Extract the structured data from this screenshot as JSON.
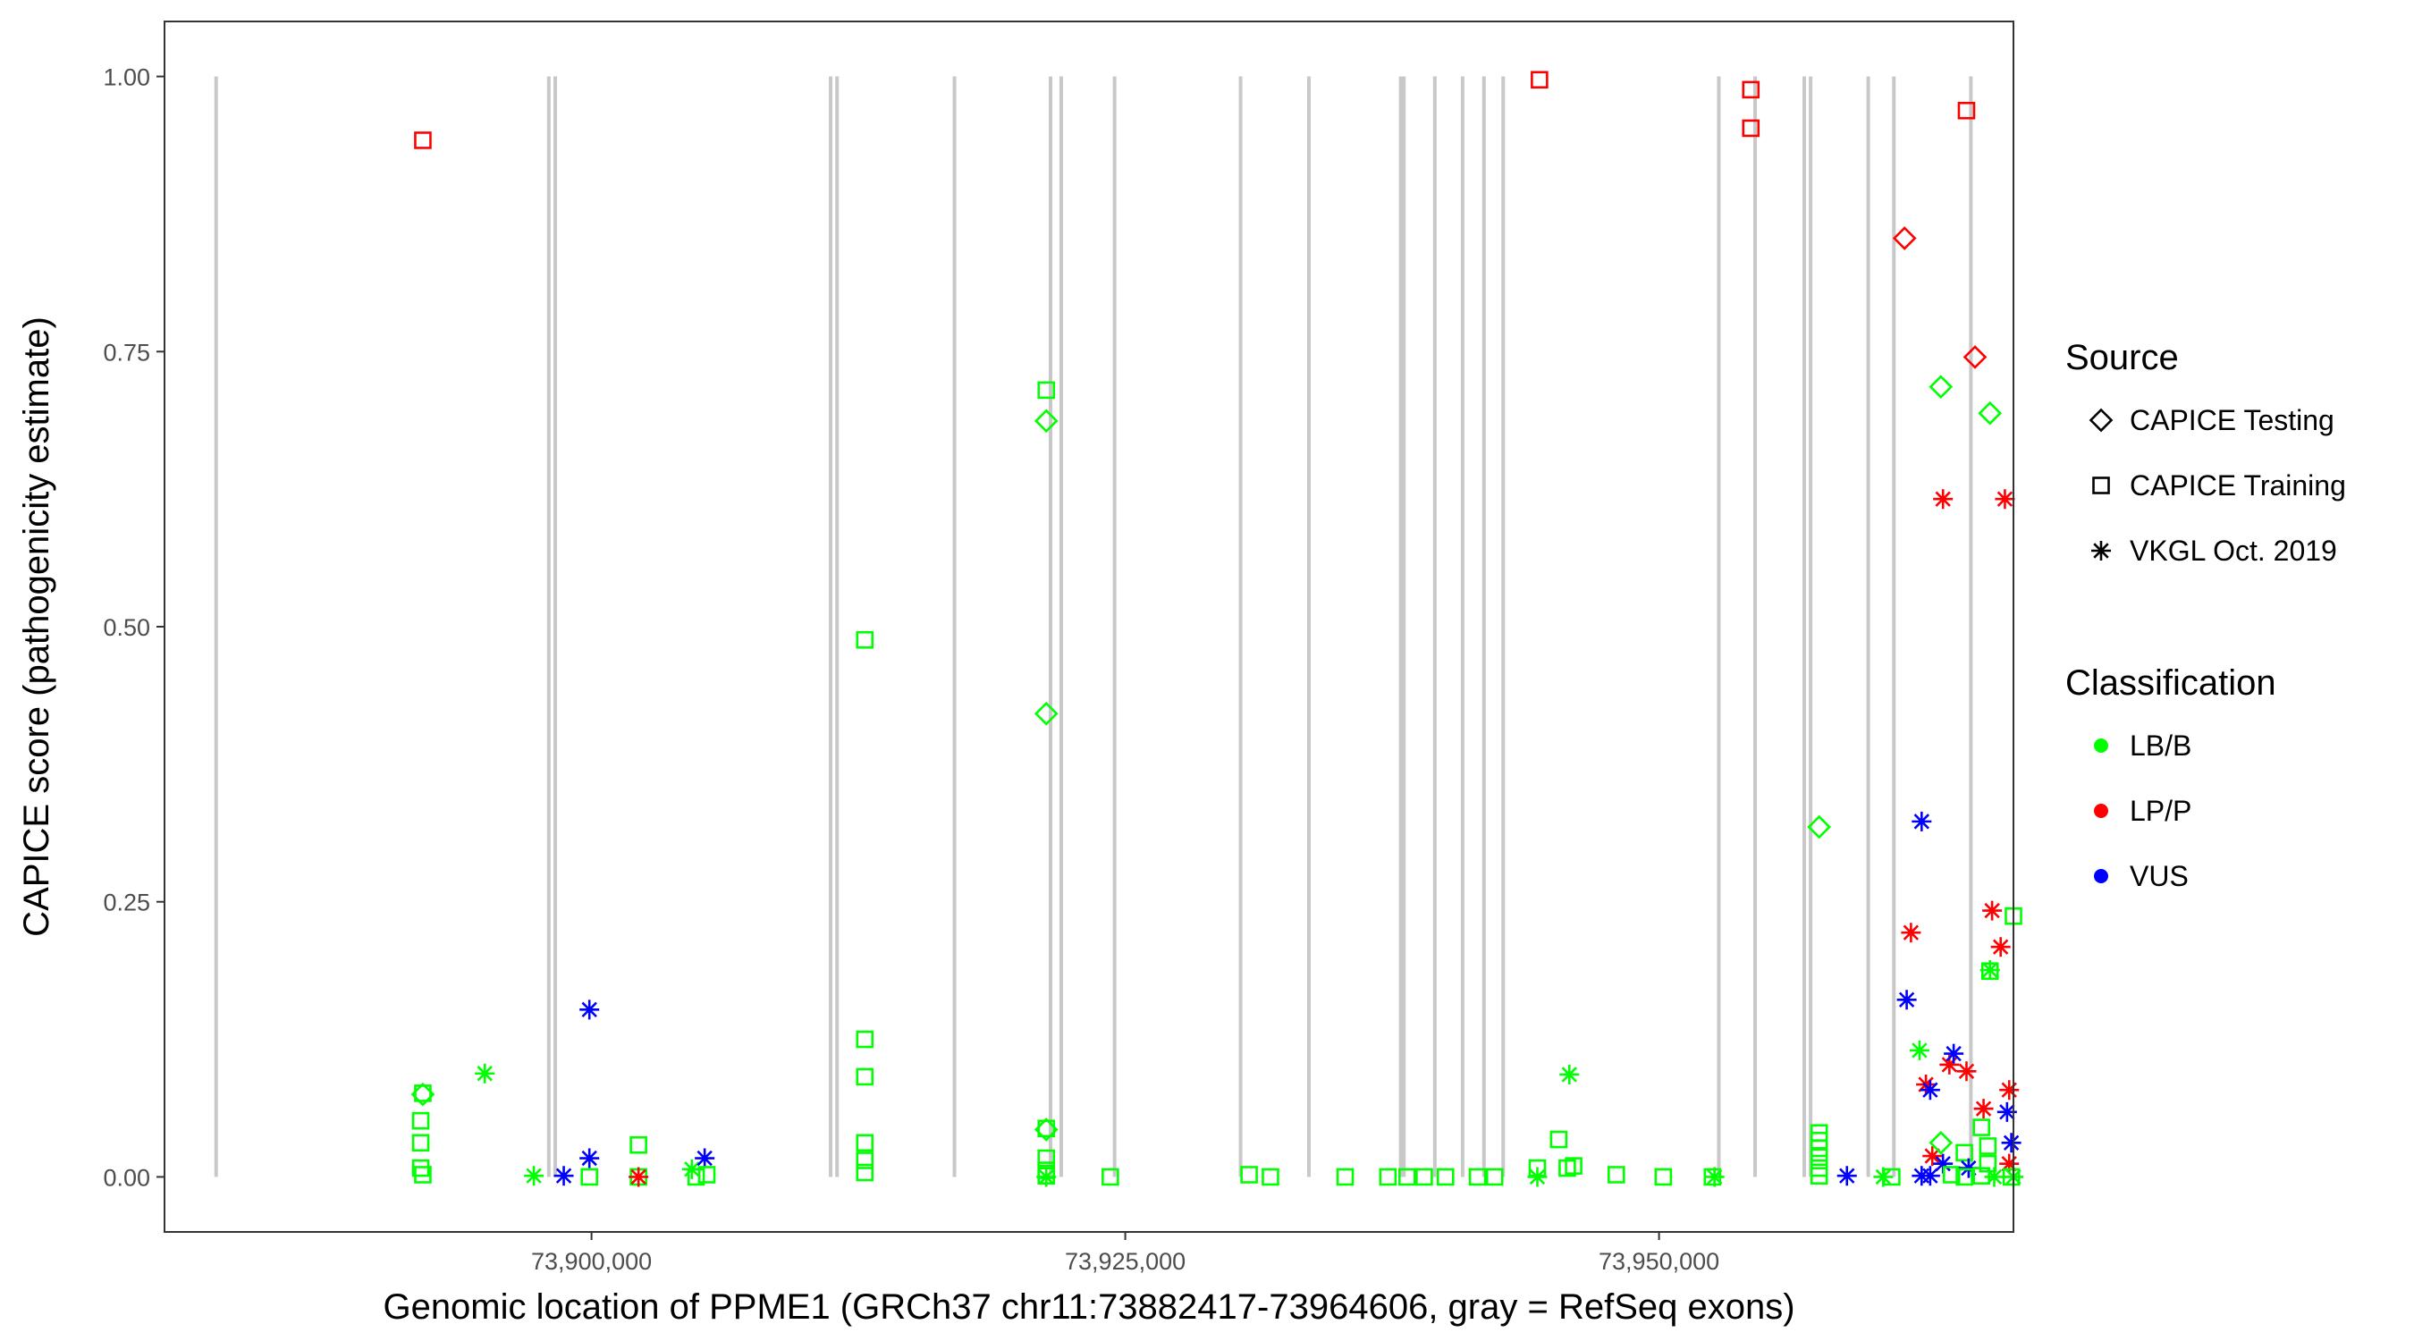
{
  "chart_data": {
    "type": "scatter",
    "title": "",
    "xlabel": "Genomic location of PPME1 (GRCh37 chr11:73882417-73964606, gray = RefSeq exons)",
    "ylabel": "CAPICE score (pathogenicity estimate)",
    "xlim": [
      73880000,
      73966600
    ],
    "ylim": [
      -0.05,
      1.05
    ],
    "x_ticks": [
      73900000,
      73925000,
      73950000
    ],
    "x_tick_labels": [
      "73,900,000",
      "73,925,000",
      "73,950,000"
    ],
    "y_ticks": [
      0,
      0.25,
      0.5,
      0.75,
      1.0
    ],
    "y_tick_labels": [
      "0.00",
      "0.25",
      "0.50",
      "0.75",
      "1.00"
    ],
    "grid": false,
    "exons": [
      73882417,
      73898000,
      73898300,
      73911200,
      73911500,
      73917000,
      73921500,
      73922000,
      73924500,
      73930400,
      73933600,
      73937900,
      73938050,
      73939500,
      73940800,
      73941800,
      73942700,
      73952800,
      73954500,
      73956800,
      73957100,
      73959800,
      73961000,
      73964606
    ],
    "exon_color": "#c8c8c8",
    "legend_position": "right",
    "legend": {
      "source_title": "Source",
      "source_items": [
        {
          "label": "CAPICE Testing",
          "shape": "diamond"
        },
        {
          "label": "CAPICE Training",
          "shape": "square"
        },
        {
          "label": "VKGL Oct. 2019",
          "shape": "asterisk"
        }
      ],
      "class_title": "Classification",
      "class_items": [
        {
          "label": "LB/B",
          "color": "#00ff00"
        },
        {
          "label": "LP/P",
          "color": "#ff0000"
        },
        {
          "label": "VUS",
          "color": "#0000ff"
        }
      ]
    },
    "colors": {
      "LB/B": "#00ff00",
      "LP/P": "#ff0000",
      "VUS": "#0000ff"
    },
    "points": [
      {
        "x": 73892100,
        "y": 0.942,
        "source": "CAPICE Training",
        "cls": "LP/P"
      },
      {
        "x": 73892100,
        "y": 0.076,
        "source": "CAPICE Training",
        "cls": "LB/B"
      },
      {
        "x": 73892100,
        "y": 0.075,
        "source": "CAPICE Testing",
        "cls": "LB/B"
      },
      {
        "x": 73892000,
        "y": 0.051,
        "source": "CAPICE Training",
        "cls": "LB/B"
      },
      {
        "x": 73892000,
        "y": 0.031,
        "source": "CAPICE Training",
        "cls": "LB/B"
      },
      {
        "x": 73892000,
        "y": 0.008,
        "source": "CAPICE Training",
        "cls": "LB/B"
      },
      {
        "x": 73892100,
        "y": 0.002,
        "source": "CAPICE Training",
        "cls": "LB/B"
      },
      {
        "x": 73895000,
        "y": 0.094,
        "source": "VKGL Oct. 2019",
        "cls": "LB/B"
      },
      {
        "x": 73897300,
        "y": 0.001,
        "source": "VKGL Oct. 2019",
        "cls": "LB/B"
      },
      {
        "x": 73898700,
        "y": 0.001,
        "source": "VKGL Oct. 2019",
        "cls": "VUS"
      },
      {
        "x": 73899900,
        "y": 0.152,
        "source": "VKGL Oct. 2019",
        "cls": "VUS"
      },
      {
        "x": 73899900,
        "y": 0.017,
        "source": "VKGL Oct. 2019",
        "cls": "VUS"
      },
      {
        "x": 73899900,
        "y": 0.0,
        "source": "CAPICE Training",
        "cls": "LB/B"
      },
      {
        "x": 73902200,
        "y": 0.029,
        "source": "CAPICE Training",
        "cls": "LB/B"
      },
      {
        "x": 73902200,
        "y": 0.0,
        "source": "CAPICE Training",
        "cls": "LB/B"
      },
      {
        "x": 73902200,
        "y": 0.0,
        "source": "VKGL Oct. 2019",
        "cls": "LP/P"
      },
      {
        "x": 73904700,
        "y": 0.007,
        "source": "VKGL Oct. 2019",
        "cls": "LB/B"
      },
      {
        "x": 73904900,
        "y": 0.0,
        "source": "CAPICE Training",
        "cls": "LB/B"
      },
      {
        "x": 73905300,
        "y": 0.017,
        "source": "VKGL Oct. 2019",
        "cls": "VUS"
      },
      {
        "x": 73905400,
        "y": 0.002,
        "source": "CAPICE Training",
        "cls": "LB/B"
      },
      {
        "x": 73912800,
        "y": 0.488,
        "source": "CAPICE Training",
        "cls": "LB/B"
      },
      {
        "x": 73912800,
        "y": 0.125,
        "source": "CAPICE Training",
        "cls": "LB/B"
      },
      {
        "x": 73912800,
        "y": 0.091,
        "source": "CAPICE Training",
        "cls": "LB/B"
      },
      {
        "x": 73912800,
        "y": 0.031,
        "source": "CAPICE Training",
        "cls": "LB/B"
      },
      {
        "x": 73912800,
        "y": 0.015,
        "source": "CAPICE Training",
        "cls": "LB/B"
      },
      {
        "x": 73912800,
        "y": 0.004,
        "source": "CAPICE Training",
        "cls": "LB/B"
      },
      {
        "x": 73921300,
        "y": 0.715,
        "source": "CAPICE Training",
        "cls": "LB/B"
      },
      {
        "x": 73921300,
        "y": 0.687,
        "source": "CAPICE Testing",
        "cls": "LB/B"
      },
      {
        "x": 73921300,
        "y": 0.421,
        "source": "CAPICE Testing",
        "cls": "LB/B"
      },
      {
        "x": 73921300,
        "y": 0.044,
        "source": "CAPICE Training",
        "cls": "LB/B"
      },
      {
        "x": 73921300,
        "y": 0.043,
        "source": "CAPICE Testing",
        "cls": "LB/B"
      },
      {
        "x": 73921300,
        "y": 0.017,
        "source": "CAPICE Training",
        "cls": "LB/B"
      },
      {
        "x": 73921300,
        "y": 0.006,
        "source": "CAPICE Training",
        "cls": "LB/B"
      },
      {
        "x": 73921300,
        "y": 0.001,
        "source": "CAPICE Training",
        "cls": "LB/B"
      },
      {
        "x": 73921300,
        "y": 0.0,
        "source": "VKGL Oct. 2019",
        "cls": "LB/B"
      },
      {
        "x": 73924300,
        "y": 0.0,
        "source": "CAPICE Training",
        "cls": "LB/B"
      },
      {
        "x": 73930800,
        "y": 0.002,
        "source": "CAPICE Training",
        "cls": "LB/B"
      },
      {
        "x": 73931800,
        "y": 0.0,
        "source": "CAPICE Training",
        "cls": "LB/B"
      },
      {
        "x": 73935300,
        "y": 0.0,
        "source": "CAPICE Training",
        "cls": "LB/B"
      },
      {
        "x": 73937300,
        "y": 0.0,
        "source": "CAPICE Training",
        "cls": "LB/B"
      },
      {
        "x": 73938200,
        "y": 0.0,
        "source": "CAPICE Training",
        "cls": "LB/B"
      },
      {
        "x": 73939000,
        "y": 0.0,
        "source": "CAPICE Training",
        "cls": "LB/B"
      },
      {
        "x": 73940000,
        "y": 0.0,
        "source": "CAPICE Training",
        "cls": "LB/B"
      },
      {
        "x": 73941500,
        "y": 0.0,
        "source": "CAPICE Training",
        "cls": "LB/B"
      },
      {
        "x": 73942300,
        "y": 0.0,
        "source": "CAPICE Training",
        "cls": "LB/B"
      },
      {
        "x": 73944400,
        "y": 0.997,
        "source": "CAPICE Training",
        "cls": "LP/P"
      },
      {
        "x": 73944300,
        "y": 0.008,
        "source": "CAPICE Training",
        "cls": "LB/B"
      },
      {
        "x": 73944300,
        "y": 0.0,
        "source": "VKGL Oct. 2019",
        "cls": "LB/B"
      },
      {
        "x": 73945300,
        "y": 0.034,
        "source": "CAPICE Training",
        "cls": "LB/B"
      },
      {
        "x": 73945800,
        "y": 0.093,
        "source": "VKGL Oct. 2019",
        "cls": "LB/B"
      },
      {
        "x": 73945700,
        "y": 0.008,
        "source": "CAPICE Training",
        "cls": "LB/B"
      },
      {
        "x": 73946000,
        "y": 0.01,
        "source": "CAPICE Training",
        "cls": "LB/B"
      },
      {
        "x": 73948000,
        "y": 0.002,
        "source": "CAPICE Training",
        "cls": "LB/B"
      },
      {
        "x": 73950200,
        "y": 0.0,
        "source": "CAPICE Training",
        "cls": "LB/B"
      },
      {
        "x": 73952500,
        "y": 0.0,
        "source": "CAPICE Training",
        "cls": "LB/B"
      },
      {
        "x": 73952600,
        "y": 0.0,
        "source": "VKGL Oct. 2019",
        "cls": "LB/B"
      },
      {
        "x": 73954300,
        "y": 0.988,
        "source": "CAPICE Training",
        "cls": "LP/P"
      },
      {
        "x": 73954300,
        "y": 0.953,
        "source": "CAPICE Training",
        "cls": "LP/P"
      },
      {
        "x": 73957500,
        "y": 0.318,
        "source": "CAPICE Testing",
        "cls": "LB/B"
      },
      {
        "x": 73957500,
        "y": 0.04,
        "source": "CAPICE Training",
        "cls": "LB/B"
      },
      {
        "x": 73957500,
        "y": 0.033,
        "source": "CAPICE Training",
        "cls": "LB/B"
      },
      {
        "x": 73957500,
        "y": 0.026,
        "source": "CAPICE Training",
        "cls": "LB/B"
      },
      {
        "x": 73957500,
        "y": 0.018,
        "source": "CAPICE Training",
        "cls": "LB/B"
      },
      {
        "x": 73957500,
        "y": 0.008,
        "source": "CAPICE Training",
        "cls": "LB/B"
      },
      {
        "x": 73957500,
        "y": 0.001,
        "source": "CAPICE Training",
        "cls": "LB/B"
      },
      {
        "x": 73958800,
        "y": 0.001,
        "source": "VKGL Oct. 2019",
        "cls": "VUS"
      },
      {
        "x": 73960500,
        "y": 0.0,
        "source": "VKGL Oct. 2019",
        "cls": "LB/B"
      },
      {
        "x": 73960900,
        "y": 0.0,
        "source": "CAPICE Training",
        "cls": "LB/B"
      },
      {
        "x": 73961500,
        "y": 0.853,
        "source": "CAPICE Testing",
        "cls": "LP/P"
      },
      {
        "x": 73962300,
        "y": 0.323,
        "source": "VKGL Oct. 2019",
        "cls": "VUS"
      },
      {
        "x": 73961800,
        "y": 0.222,
        "source": "VKGL Oct. 2019",
        "cls": "LP/P"
      },
      {
        "x": 73961600,
        "y": 0.161,
        "source": "VKGL Oct. 2019",
        "cls": "VUS"
      },
      {
        "x": 73962200,
        "y": 0.115,
        "source": "VKGL Oct. 2019",
        "cls": "LB/B"
      },
      {
        "x": 73962500,
        "y": 0.084,
        "source": "VKGL Oct. 2019",
        "cls": "LP/P"
      },
      {
        "x": 73962700,
        "y": 0.079,
        "source": "VKGL Oct. 2019",
        "cls": "VUS"
      },
      {
        "x": 73962300,
        "y": 0.001,
        "source": "VKGL Oct. 2019",
        "cls": "VUS"
      },
      {
        "x": 73962700,
        "y": 0.001,
        "source": "VKGL Oct. 2019",
        "cls": "VUS"
      },
      {
        "x": 73962800,
        "y": 0.019,
        "source": "VKGL Oct. 2019",
        "cls": "LP/P"
      },
      {
        "x": 73963200,
        "y": 0.718,
        "source": "CAPICE Testing",
        "cls": "LB/B"
      },
      {
        "x": 73963300,
        "y": 0.616,
        "source": "VKGL Oct. 2019",
        "cls": "LP/P"
      },
      {
        "x": 73963200,
        "y": 0.031,
        "source": "CAPICE Testing",
        "cls": "LB/B"
      },
      {
        "x": 73963300,
        "y": 0.012,
        "source": "VKGL Oct. 2019",
        "cls": "VUS"
      },
      {
        "x": 73963600,
        "y": 0.102,
        "source": "VKGL Oct. 2019",
        "cls": "LP/P"
      },
      {
        "x": 73963800,
        "y": 0.112,
        "source": "VKGL Oct. 2019",
        "cls": "VUS"
      },
      {
        "x": 73963700,
        "y": 0.002,
        "source": "CAPICE Training",
        "cls": "LB/B"
      },
      {
        "x": 73964400,
        "y": 0.969,
        "source": "CAPICE Training",
        "cls": "LP/P"
      },
      {
        "x": 73964400,
        "y": 0.096,
        "source": "VKGL Oct. 2019",
        "cls": "LP/P"
      },
      {
        "x": 73964300,
        "y": 0.022,
        "source": "CAPICE Training",
        "cls": "LB/B"
      },
      {
        "x": 73964500,
        "y": 0.008,
        "source": "VKGL Oct. 2019",
        "cls": "VUS"
      },
      {
        "x": 73964300,
        "y": 0.0,
        "source": "CAPICE Training",
        "cls": "LB/B"
      },
      {
        "x": 73964800,
        "y": 0.745,
        "source": "CAPICE Testing",
        "cls": "LP/P"
      },
      {
        "x": 73965200,
        "y": 0.062,
        "source": "VKGL Oct. 2019",
        "cls": "LP/P"
      },
      {
        "x": 73965100,
        "y": 0.045,
        "source": "CAPICE Training",
        "cls": "LB/B"
      },
      {
        "x": 73965100,
        "y": 0.001,
        "source": "CAPICE Training",
        "cls": "LB/B"
      },
      {
        "x": 73965500,
        "y": 0.694,
        "source": "CAPICE Testing",
        "cls": "LB/B"
      },
      {
        "x": 73965600,
        "y": 0.242,
        "source": "VKGL Oct. 2019",
        "cls": "LP/P"
      },
      {
        "x": 73965500,
        "y": 0.187,
        "source": "CAPICE Training",
        "cls": "LB/B"
      },
      {
        "x": 73965500,
        "y": 0.188,
        "source": "VKGL Oct. 2019",
        "cls": "LB/B"
      },
      {
        "x": 73965400,
        "y": 0.028,
        "source": "CAPICE Training",
        "cls": "LB/B"
      },
      {
        "x": 73965400,
        "y": 0.012,
        "source": "CAPICE Training",
        "cls": "LB/B"
      },
      {
        "x": 73965700,
        "y": 0.0,
        "source": "VKGL Oct. 2019",
        "cls": "LB/B"
      },
      {
        "x": 73966000,
        "y": 0.209,
        "source": "VKGL Oct. 2019",
        "cls": "LP/P"
      },
      {
        "x": 73966200,
        "y": 0.616,
        "source": "VKGL Oct. 2019",
        "cls": "LP/P"
      },
      {
        "x": 73966300,
        "y": 0.059,
        "source": "VKGL Oct. 2019",
        "cls": "VUS"
      },
      {
        "x": 73966400,
        "y": 0.079,
        "source": "VKGL Oct. 2019",
        "cls": "LP/P"
      },
      {
        "x": 73966400,
        "y": 0.012,
        "source": "VKGL Oct. 2019",
        "cls": "LP/P"
      },
      {
        "x": 73966500,
        "y": 0.031,
        "source": "VKGL Oct. 2019",
        "cls": "VUS"
      },
      {
        "x": 73966600,
        "y": 0.237,
        "source": "CAPICE Training",
        "cls": "LB/B"
      },
      {
        "x": 73966500,
        "y": 0.0,
        "source": "CAPICE Training",
        "cls": "LB/B"
      },
      {
        "x": 73966600,
        "y": 0.0,
        "source": "VKGL Oct. 2019",
        "cls": "LB/B"
      }
    ]
  }
}
